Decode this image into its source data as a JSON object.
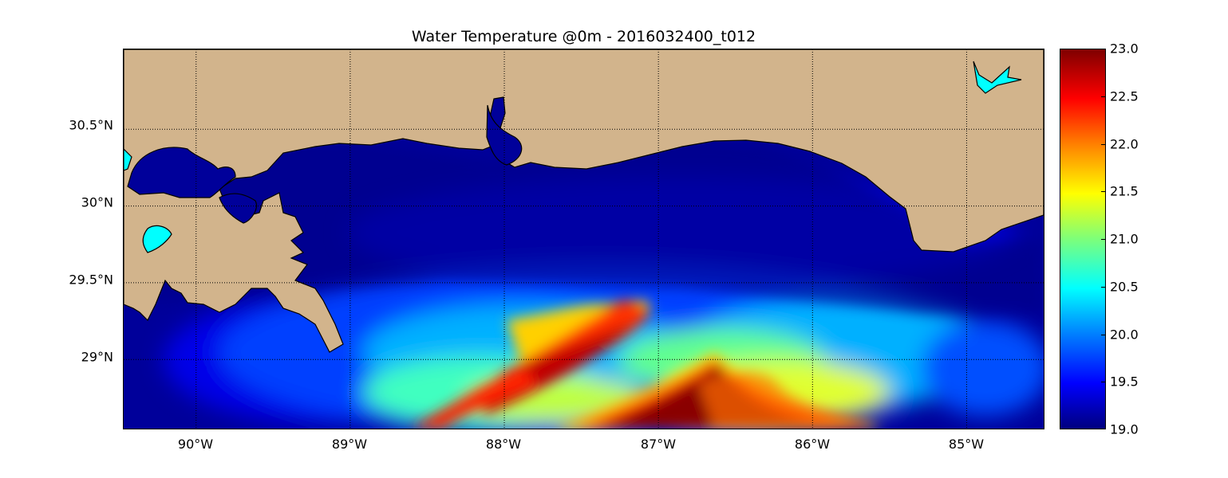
{
  "title": "Water Temperature @0m - 2016032400_t012",
  "map": {
    "lon_range": [
      -90.47,
      -84.5
    ],
    "lat_range": [
      28.55,
      31.02
    ],
    "lat_ticks": [
      {
        "value": 30.5,
        "label": "30.5°N"
      },
      {
        "value": 30.0,
        "label": "30°N"
      },
      {
        "value": 29.5,
        "label": "29.5°N"
      },
      {
        "value": 29.0,
        "label": "29°N"
      }
    ],
    "lon_ticks": [
      {
        "value": -90,
        "label": "90°W"
      },
      {
        "value": -89,
        "label": "89°W"
      },
      {
        "value": -88,
        "label": "88°W"
      },
      {
        "value": -87,
        "label": "87°W"
      },
      {
        "value": -86,
        "label": "86°W"
      },
      {
        "value": -85,
        "label": "85°W"
      }
    ],
    "land_color": "#d2b48c",
    "grid": true
  },
  "colorbar": {
    "min": 19.0,
    "max": 23.0,
    "ticks": [
      "19.0",
      "19.5",
      "20.0",
      "20.5",
      "21.0",
      "21.5",
      "22.0",
      "22.5",
      "23.0"
    ],
    "colormap": "jet"
  }
}
